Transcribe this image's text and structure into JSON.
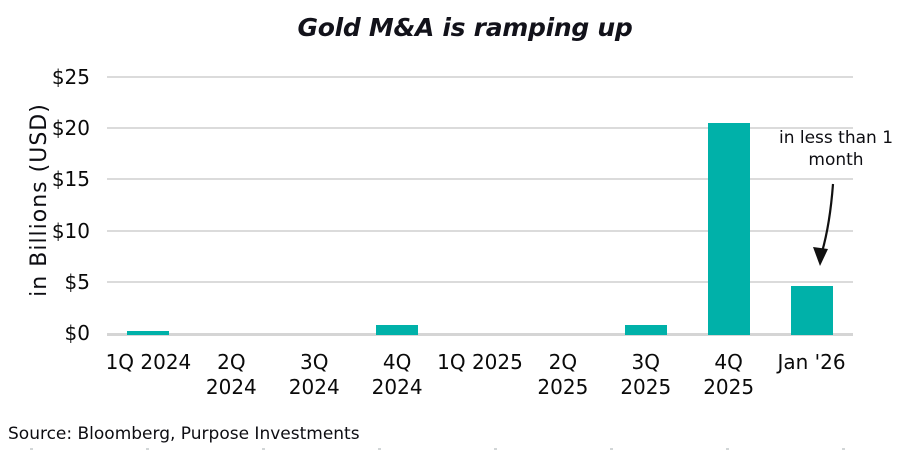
{
  "chart_data": {
    "type": "bar",
    "title": "Gold M&A is ramping up",
    "ylabel": "in Billions (USD)",
    "categories": [
      "1Q 2024",
      "2Q 2024",
      "3Q 2024",
      "4Q 2024",
      "1Q 2025",
      "2Q 2025",
      "3Q 2025",
      "4Q 2025",
      "Jan '26"
    ],
    "xtick_display": [
      "1Q 2024",
      "2Q\n2024",
      "3Q\n2024",
      "4Q\n2024",
      "1Q 2025",
      "2Q\n2025",
      "3Q\n2025",
      "4Q\n2025",
      "Jan '26"
    ],
    "values": [
      0.2,
      0,
      0,
      0.8,
      0,
      0,
      0.8,
      20.5,
      4.6
    ],
    "ylim": [
      0,
      25
    ],
    "ytick_labels": [
      "$0",
      "$5",
      "$10",
      "$15",
      "$20",
      "$25"
    ],
    "ytick_values": [
      0,
      5,
      10,
      15,
      20,
      25
    ],
    "grid": true,
    "legend": "none",
    "bar_color": "#00b1a9",
    "gridline_color": "#dbdbdb",
    "annotation": {
      "text": "in less than 1\nmonth",
      "target_category": "Jan '26"
    },
    "source": "Source: Bloomberg, Purpose Investments"
  }
}
